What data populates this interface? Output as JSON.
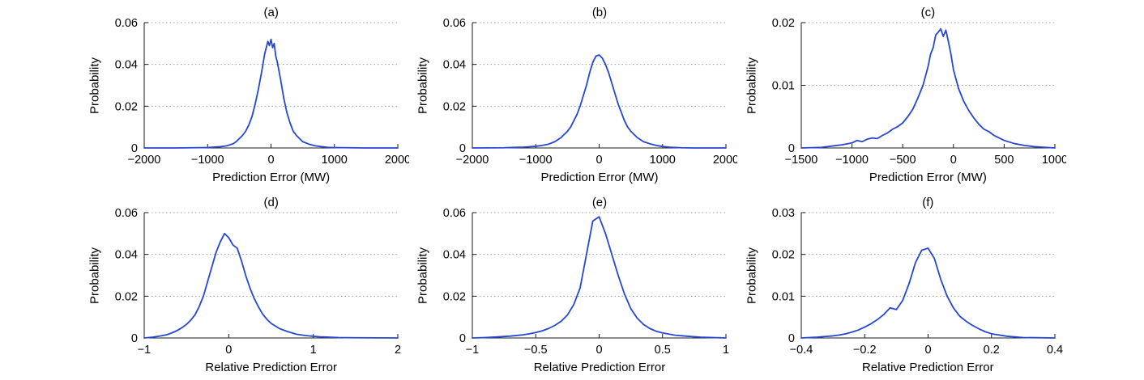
{
  "style": {
    "line_color": "#2646d4",
    "grid_color": "#9e9e9e",
    "axis_color": "#1a1a1a",
    "background": "#ffffff"
  },
  "chart_data": [
    {
      "type": "line",
      "title": "(a)",
      "xlabel": "Prediction Error (MW)",
      "ylabel": "Probability",
      "xlim": [
        -2000,
        2000
      ],
      "ylim": [
        0,
        0.06
      ],
      "xticks": [
        -2000,
        -1000,
        0,
        1000,
        2000
      ],
      "yticks": [
        0,
        0.02,
        0.04,
        0.06
      ],
      "grid": "horizontal-dotted",
      "legend": "none",
      "x": [
        -2000,
        -1500,
        -1000,
        -800,
        -700,
        -650,
        -600,
        -550,
        -500,
        -450,
        -400,
        -350,
        -300,
        -250,
        -200,
        -150,
        -100,
        -75,
        -50,
        -25,
        0,
        25,
        50,
        75,
        100,
        150,
        200,
        250,
        300,
        350,
        400,
        450,
        500,
        600,
        700,
        800,
        900,
        1000,
        1500,
        2000
      ],
      "y": [
        0,
        0,
        0.0002,
        0.0006,
        0.001,
        0.0015,
        0.002,
        0.003,
        0.0045,
        0.006,
        0.008,
        0.011,
        0.015,
        0.021,
        0.028,
        0.036,
        0.045,
        0.048,
        0.051,
        0.049,
        0.052,
        0.048,
        0.05,
        0.044,
        0.041,
        0.033,
        0.024,
        0.017,
        0.012,
        0.008,
        0.006,
        0.0045,
        0.003,
        0.0018,
        0.001,
        0.0006,
        0.0003,
        0.0002,
        0,
        0
      ]
    },
    {
      "type": "line",
      "title": "(b)",
      "xlabel": "Prediction Error (MW)",
      "ylabel": "Probability",
      "xlim": [
        -2000,
        2000
      ],
      "ylim": [
        0,
        0.06
      ],
      "xticks": [
        -2000,
        -1000,
        0,
        1000,
        2000
      ],
      "yticks": [
        0,
        0.02,
        0.04,
        0.06
      ],
      "grid": "horizontal-dotted",
      "legend": "none",
      "x": [
        -2000,
        -1500,
        -1200,
        -1000,
        -900,
        -800,
        -700,
        -600,
        -550,
        -500,
        -450,
        -400,
        -350,
        -300,
        -250,
        -200,
        -150,
        -100,
        -50,
        0,
        50,
        100,
        150,
        200,
        250,
        300,
        350,
        400,
        450,
        500,
        600,
        700,
        800,
        900,
        1000,
        1100,
        1300,
        1500,
        2000
      ],
      "y": [
        0,
        0.0001,
        0.0004,
        0.0008,
        0.0012,
        0.0018,
        0.003,
        0.005,
        0.0065,
        0.008,
        0.01,
        0.013,
        0.016,
        0.02,
        0.025,
        0.03,
        0.036,
        0.041,
        0.044,
        0.0445,
        0.043,
        0.04,
        0.036,
        0.031,
        0.026,
        0.021,
        0.017,
        0.013,
        0.01,
        0.008,
        0.005,
        0.003,
        0.002,
        0.0012,
        0.0007,
        0.0004,
        0.0001,
        0,
        0
      ]
    },
    {
      "type": "line",
      "title": "(c)",
      "xlabel": "Prediction Error (MW)",
      "ylabel": "Probability",
      "xlim": [
        -1500,
        1000
      ],
      "ylim": [
        0,
        0.02
      ],
      "xticks": [
        -1500,
        -1000,
        -500,
        0,
        500,
        1000
      ],
      "yticks": [
        0,
        0.01,
        0.02
      ],
      "grid": "horizontal-dotted",
      "legend": "none",
      "x": [
        -1500,
        -1300,
        -1200,
        -1100,
        -1000,
        -950,
        -900,
        -850,
        -800,
        -750,
        -700,
        -650,
        -600,
        -550,
        -500,
        -450,
        -400,
        -350,
        -300,
        -250,
        -225,
        -200,
        -175,
        -150,
        -125,
        -100,
        -75,
        -50,
        -25,
        0,
        25,
        50,
        100,
        150,
        200,
        250,
        300,
        350,
        400,
        450,
        500,
        600,
        700,
        800,
        1000
      ],
      "y": [
        0,
        0.0001,
        0.0003,
        0.0005,
        0.0008,
        0.0012,
        0.001,
        0.0014,
        0.0016,
        0.0015,
        0.002,
        0.0024,
        0.003,
        0.0034,
        0.004,
        0.005,
        0.0062,
        0.008,
        0.01,
        0.013,
        0.015,
        0.016,
        0.018,
        0.0185,
        0.019,
        0.0178,
        0.0188,
        0.017,
        0.015,
        0.0125,
        0.011,
        0.0095,
        0.0075,
        0.006,
        0.0048,
        0.0038,
        0.003,
        0.0026,
        0.002,
        0.0016,
        0.0012,
        0.0007,
        0.0004,
        0.0002,
        0
      ]
    },
    {
      "type": "line",
      "title": "(d)",
      "xlabel": "Relative Prediction Error",
      "ylabel": "Probability",
      "xlim": [
        -1,
        2
      ],
      "ylim": [
        0,
        0.06
      ],
      "xticks": [
        -1,
        0,
        1,
        2
      ],
      "yticks": [
        0,
        0.02,
        0.04,
        0.06
      ],
      "grid": "horizontal-dotted",
      "legend": "none",
      "x": [
        -1,
        -0.9,
        -0.8,
        -0.75,
        -0.7,
        -0.65,
        -0.6,
        -0.55,
        -0.5,
        -0.45,
        -0.4,
        -0.35,
        -0.3,
        -0.25,
        -0.2,
        -0.15,
        -0.1,
        -0.05,
        0,
        0.05,
        0.1,
        0.15,
        0.2,
        0.25,
        0.3,
        0.35,
        0.4,
        0.45,
        0.5,
        0.6,
        0.7,
        0.8,
        0.9,
        1.0,
        1.1,
        1.3,
        1.5,
        2.0
      ],
      "y": [
        0,
        0.0004,
        0.001,
        0.0014,
        0.002,
        0.0028,
        0.0038,
        0.005,
        0.0065,
        0.0085,
        0.011,
        0.015,
        0.02,
        0.027,
        0.034,
        0.041,
        0.046,
        0.05,
        0.048,
        0.0445,
        0.043,
        0.037,
        0.03,
        0.024,
        0.019,
        0.015,
        0.0115,
        0.009,
        0.007,
        0.0045,
        0.003,
        0.0018,
        0.0012,
        0.0008,
        0.0005,
        0.0002,
        0.0001,
        0
      ]
    },
    {
      "type": "line",
      "title": "(e)",
      "xlabel": "Relative Prediction Error",
      "ylabel": "Probability",
      "xlim": [
        -1,
        1
      ],
      "ylim": [
        0,
        0.06
      ],
      "xticks": [
        -1,
        -0.5,
        0,
        0.5,
        1
      ],
      "yticks": [
        0,
        0.02,
        0.04,
        0.06
      ],
      "grid": "horizontal-dotted",
      "legend": "none",
      "x": [
        -1,
        -0.9,
        -0.8,
        -0.7,
        -0.6,
        -0.55,
        -0.5,
        -0.45,
        -0.4,
        -0.35,
        -0.3,
        -0.25,
        -0.2,
        -0.15,
        -0.1,
        -0.05,
        0,
        0.05,
        0.1,
        0.15,
        0.2,
        0.25,
        0.3,
        0.35,
        0.4,
        0.45,
        0.5,
        0.6,
        0.7,
        0.8,
        0.9,
        1.0
      ],
      "y": [
        0,
        0.0002,
        0.0005,
        0.0009,
        0.0015,
        0.002,
        0.0026,
        0.0034,
        0.0045,
        0.006,
        0.008,
        0.011,
        0.016,
        0.024,
        0.04,
        0.056,
        0.058,
        0.05,
        0.04,
        0.03,
        0.021,
        0.014,
        0.0095,
        0.0065,
        0.0045,
        0.0032,
        0.0024,
        0.0013,
        0.0008,
        0.0004,
        0.0002,
        0
      ]
    },
    {
      "type": "line",
      "title": "(f)",
      "xlabel": "Relative Prediction Error",
      "ylabel": "Probability",
      "xlim": [
        -0.4,
        0.4
      ],
      "ylim": [
        0,
        0.03
      ],
      "xticks": [
        -0.4,
        -0.2,
        0,
        0.2,
        0.4
      ],
      "yticks": [
        0,
        0.01,
        0.02,
        0.03
      ],
      "grid": "horizontal-dotted",
      "legend": "none",
      "x": [
        -0.4,
        -0.35,
        -0.3,
        -0.28,
        -0.26,
        -0.24,
        -0.22,
        -0.2,
        -0.18,
        -0.16,
        -0.14,
        -0.12,
        -0.1,
        -0.08,
        -0.06,
        -0.04,
        -0.02,
        0,
        0.02,
        0.04,
        0.06,
        0.08,
        0.1,
        0.12,
        0.14,
        0.16,
        0.18,
        0.2,
        0.25,
        0.3,
        0.4
      ],
      "y": [
        0,
        0.0002,
        0.0005,
        0.0007,
        0.001,
        0.0014,
        0.0019,
        0.0026,
        0.0034,
        0.0044,
        0.0056,
        0.0072,
        0.0068,
        0.009,
        0.013,
        0.018,
        0.021,
        0.0215,
        0.019,
        0.014,
        0.01,
        0.0072,
        0.0052,
        0.004,
        0.003,
        0.0022,
        0.0015,
        0.001,
        0.0004,
        0.0001,
        0
      ]
    }
  ]
}
